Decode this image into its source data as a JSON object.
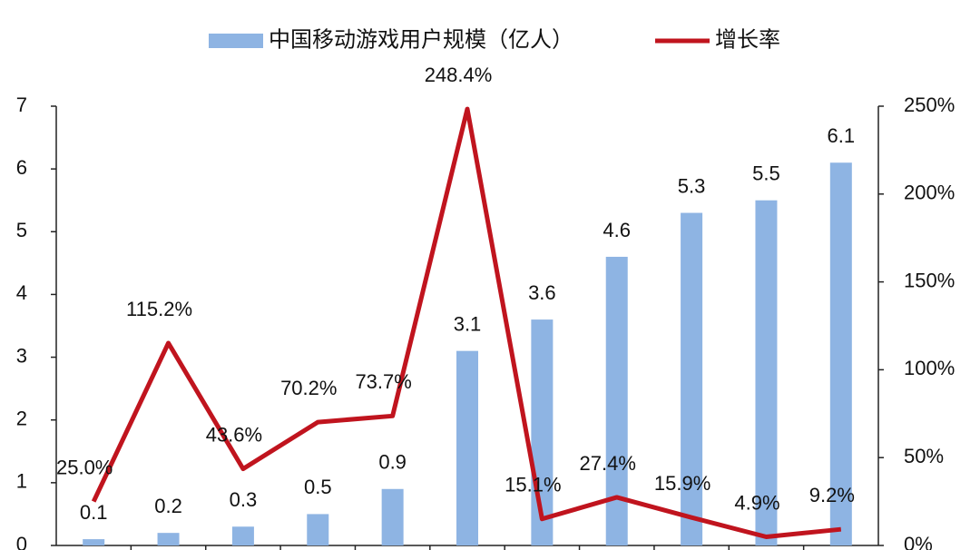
{
  "chart_data": {
    "type": "bar_line",
    "categories": [
      null,
      null,
      null,
      null,
      null,
      null,
      null,
      null,
      null,
      null,
      null
    ],
    "series": [
      {
        "name": "中国移动游戏用户规模（亿人）",
        "color": "#8eb4e3",
        "type": "bar",
        "values": [
          0.1,
          0.2,
          0.3,
          0.5,
          0.9,
          3.1,
          3.6,
          4.6,
          5.3,
          5.5,
          6.1
        ]
      },
      {
        "name": "增长率",
        "color": "#c0141e",
        "type": "line",
        "axis": "y2",
        "values": [
          25.0,
          115.2,
          43.6,
          70.2,
          73.7,
          248.4,
          15.1,
          27.4,
          15.9,
          4.9,
          9.2
        ],
        "value_labels": [
          "25.0%",
          "115.2%",
          "43.6%",
          "70.2%",
          "73.7%",
          "248.4%",
          "15.1%",
          "27.4%",
          "15.9%",
          "4.9%",
          "9.2%"
        ]
      }
    ],
    "ylim": [
      0,
      7
    ],
    "yticks": [
      0,
      1,
      2,
      3,
      4,
      5,
      6,
      7
    ],
    "y2lim": [
      0,
      250
    ],
    "y2ticks": [
      {
        "value": 0,
        "label": "0%"
      },
      {
        "value": 50,
        "label": "50%"
      },
      {
        "value": 100,
        "label": "100%"
      },
      {
        "value": 150,
        "label": "150%"
      },
      {
        "value": 200,
        "label": "200%"
      },
      {
        "value": 250,
        "label": "250%"
      }
    ],
    "legend": "top",
    "grid": false
  }
}
